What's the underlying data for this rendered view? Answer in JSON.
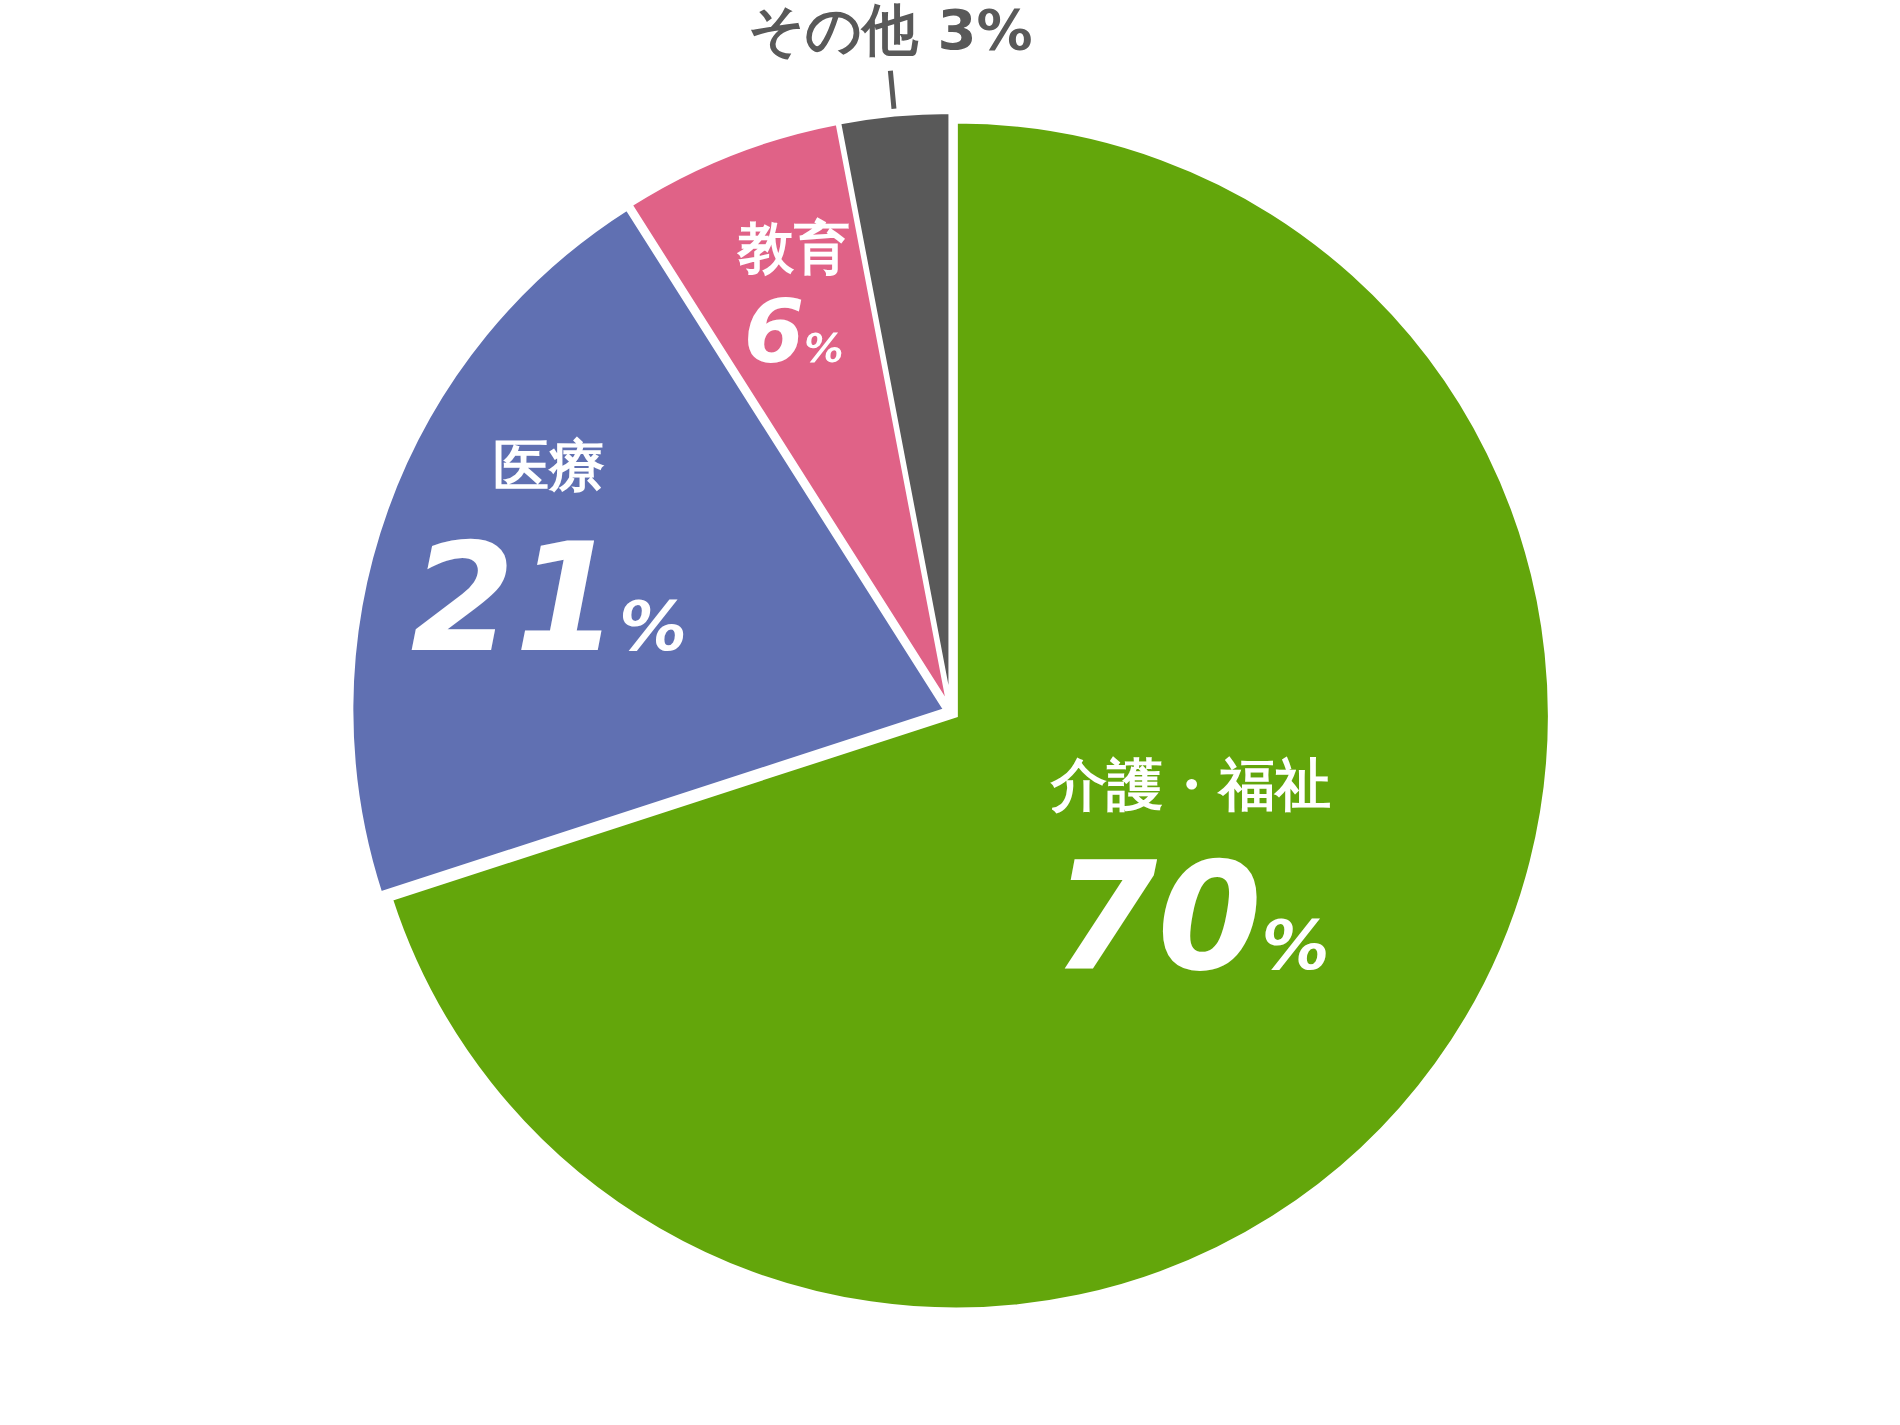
{
  "chart_data": {
    "type": "pie",
    "categories": [
      "介護・福祉",
      "医療",
      "教育",
      "その他"
    ],
    "values": [
      70,
      21,
      6,
      3
    ],
    "colors": [
      "#63a60b",
      "#6070b2",
      "#e06287",
      "#595959"
    ],
    "value_labels": [
      "70%",
      "21%",
      "6%",
      "3%"
    ]
  }
}
